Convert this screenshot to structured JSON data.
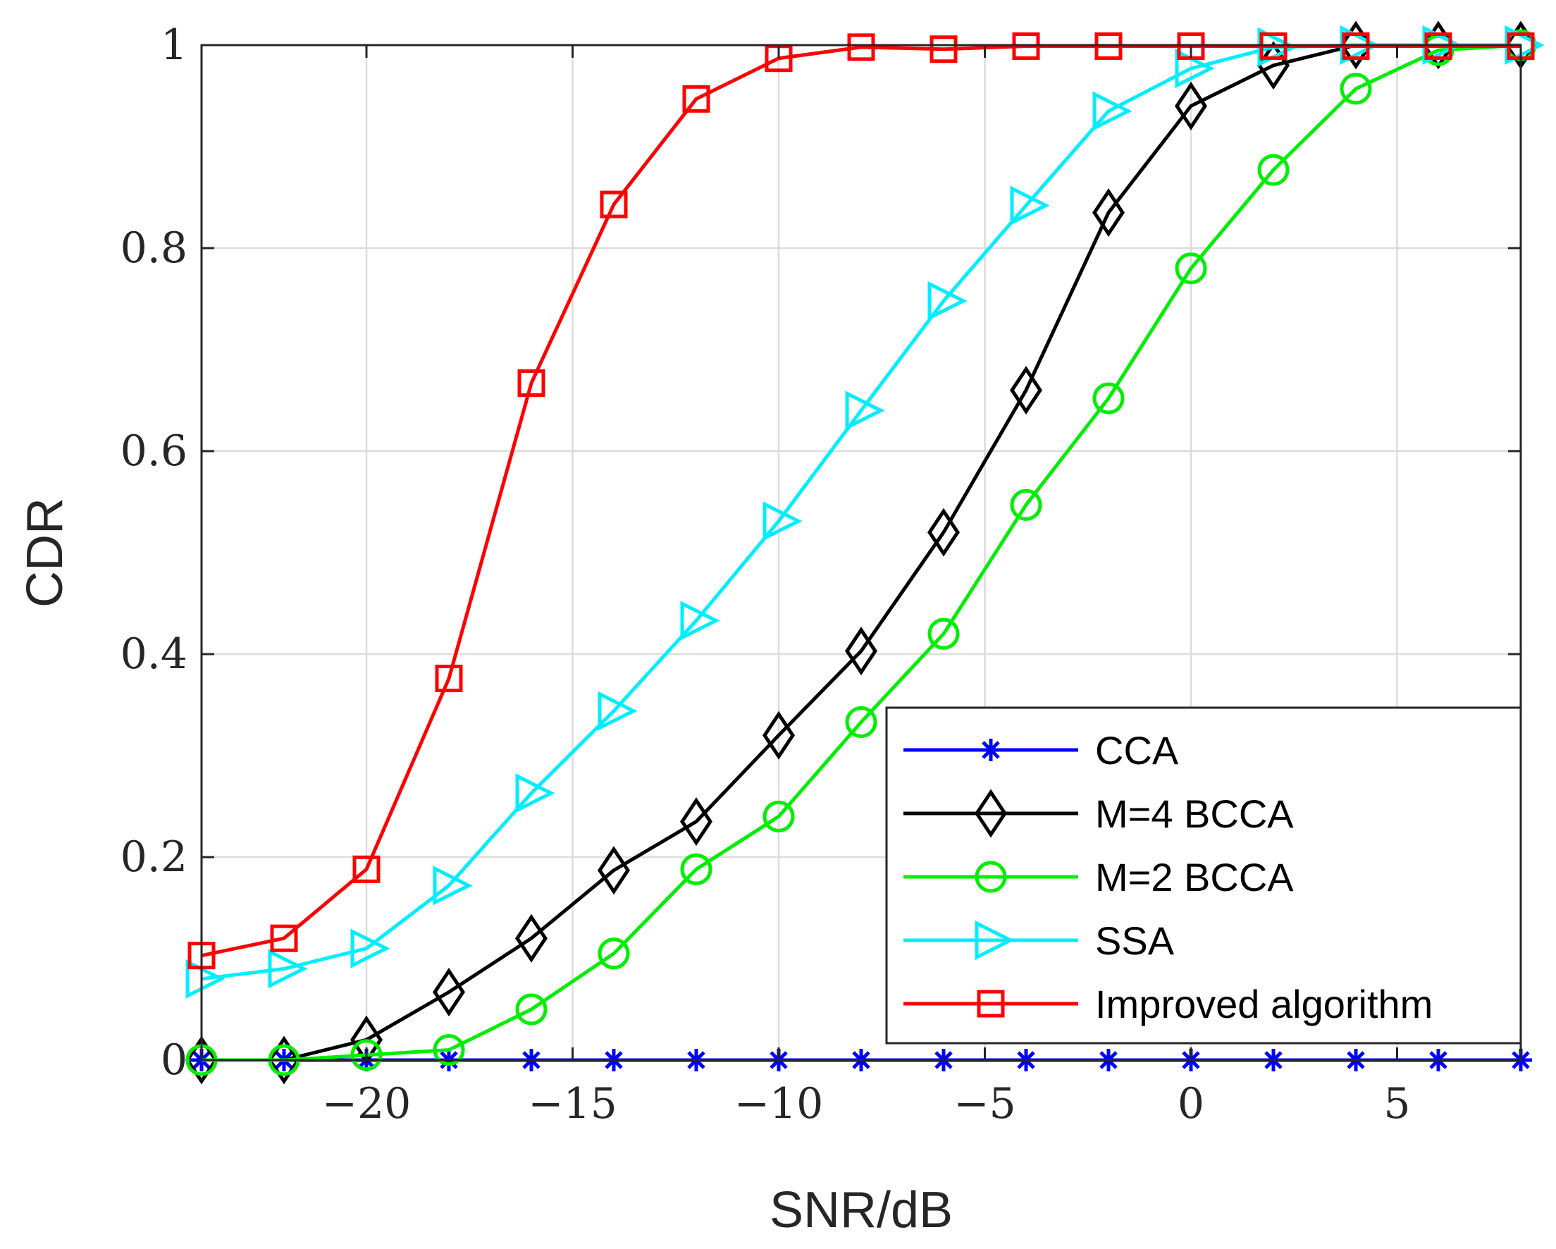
{
  "chart_data": {
    "type": "line",
    "title": "",
    "xlabel": "SNR/dB",
    "ylabel": "CDR",
    "xlim": [
      -24,
      8
    ],
    "ylim": [
      0,
      1
    ],
    "grid": true,
    "legend_position": "bottom-right",
    "x": [
      -24,
      -22,
      -20,
      -18,
      -16,
      -14,
      -12,
      -10,
      -8,
      -6,
      -4,
      -2,
      0,
      2,
      4,
      6,
      8
    ],
    "xticks": [
      -20,
      -15,
      -10,
      -5,
      0,
      5
    ],
    "xtick_labels": [
      "−20",
      "−15",
      "−10",
      "−5",
      "0",
      "5"
    ],
    "yticks": [
      0,
      0.2,
      0.4,
      0.6,
      0.8,
      1
    ],
    "ytick_labels": [
      "0",
      "0.2",
      "0.4",
      "0.6",
      "0.8",
      "1"
    ],
    "series": [
      {
        "name": "CCA",
        "color": "#0000ff",
        "marker": "asterisk",
        "values": [
          0,
          0,
          0,
          0,
          0,
          0,
          0,
          0,
          0,
          0,
          0,
          0,
          0,
          0,
          0,
          0,
          0
        ]
      },
      {
        "name": "M=4 BCCA",
        "color": "#000000",
        "marker": "diamond",
        "values": [
          0,
          0,
          0.02,
          0.067,
          0.12,
          0.187,
          0.235,
          0.32,
          0.403,
          0.52,
          0.66,
          0.835,
          0.94,
          0.98,
          1,
          1,
          1
        ]
      },
      {
        "name": "M=2 BCCA",
        "color": "#00ee00",
        "marker": "circle",
        "values": [
          0,
          0,
          0.005,
          0.01,
          0.05,
          0.105,
          0.188,
          0.24,
          0.333,
          0.42,
          0.547,
          0.652,
          0.78,
          0.877,
          0.957,
          0.995,
          1
        ]
      },
      {
        "name": "SSA",
        "color": "#00eeff",
        "marker": "triangle-right",
        "values": [
          0.08,
          0.09,
          0.11,
          0.172,
          0.263,
          0.344,
          0.433,
          0.531,
          0.64,
          0.748,
          0.842,
          0.935,
          0.977,
          0.998,
          1,
          1,
          1
        ]
      },
      {
        "name": "Improved algorithm",
        "color": "#ff0000",
        "marker": "square",
        "values": [
          0.103,
          0.12,
          0.188,
          0.376,
          0.667,
          0.843,
          0.947,
          0.987,
          0.998,
          0.996,
          0.999,
          0.999,
          0.999,
          0.999,
          0.999,
          0.999,
          0.999
        ]
      }
    ]
  }
}
